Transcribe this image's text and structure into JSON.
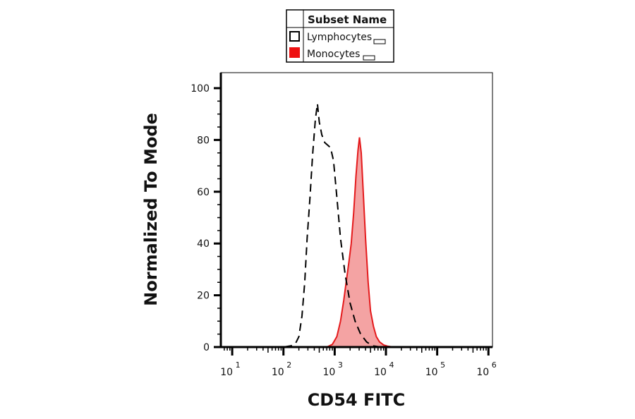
{
  "chart_data": {
    "type": "area",
    "title": "",
    "xlabel": "CD54 FITC",
    "ylabel": "Normalized To Mode",
    "x_scale": "log",
    "x_ticks": [
      {
        "base": "10",
        "exp": "1"
      },
      {
        "base": "10",
        "exp": "2"
      },
      {
        "base": "10",
        "exp": "3"
      },
      {
        "base": "10",
        "exp": "4"
      },
      {
        "base": "10",
        "exp": "5"
      },
      {
        "base": "10",
        "exp": "6"
      }
    ],
    "xlim": [
      6,
      1200000
    ],
    "ylim": [
      0,
      100
    ],
    "y_ticks": [
      "0",
      "20",
      "40",
      "60",
      "80",
      "100"
    ],
    "grid": false,
    "legend": {
      "header": "Subset Name",
      "placement": "top-center",
      "entries": [
        {
          "label": "Lymphocytes",
          "swatch_color": "#ffffff",
          "swatch_border": "#000000"
        },
        {
          "label": "Monocytes",
          "swatch_color": "#ee1111",
          "swatch_border": "#ee1111"
        }
      ]
    },
    "series": [
      {
        "name": "Lymphocytes",
        "style": "dashed",
        "line_color": "#000000",
        "fill": "none",
        "x": [
          6,
          100,
          140,
          170,
          200,
          230,
          260,
          290,
          330,
          370,
          420,
          460,
          500,
          560,
          640,
          730,
          830,
          950,
          1100,
          1300,
          1600,
          2000,
          2500,
          3200,
          4200,
          5500,
          8000,
          1200000
        ],
        "y": [
          0,
          0,
          0.5,
          1.2,
          4,
          12,
          25,
          42,
          58,
          74,
          88,
          94,
          87,
          82,
          79,
          78,
          77,
          72,
          58,
          42,
          28,
          17,
          10,
          5,
          2,
          0.5,
          0,
          0
        ]
      },
      {
        "name": "Monocytes",
        "style": "solid",
        "line_color": "#e41a1c",
        "fill": "#f4a3a3",
        "x": [
          6,
          700,
          900,
          1100,
          1300,
          1500,
          1700,
          1900,
          2100,
          2350,
          2600,
          2850,
          3050,
          3300,
          3600,
          4000,
          4500,
          5000,
          5700,
          6500,
          7500,
          9000,
          11000,
          14000,
          1200000
        ],
        "y": [
          0,
          0,
          1,
          4,
          10,
          18,
          26,
          33,
          40,
          52,
          66,
          76,
          81,
          75,
          60,
          42,
          25,
          14,
          8,
          4,
          2,
          0.8,
          0.3,
          0,
          0
        ]
      }
    ]
  }
}
